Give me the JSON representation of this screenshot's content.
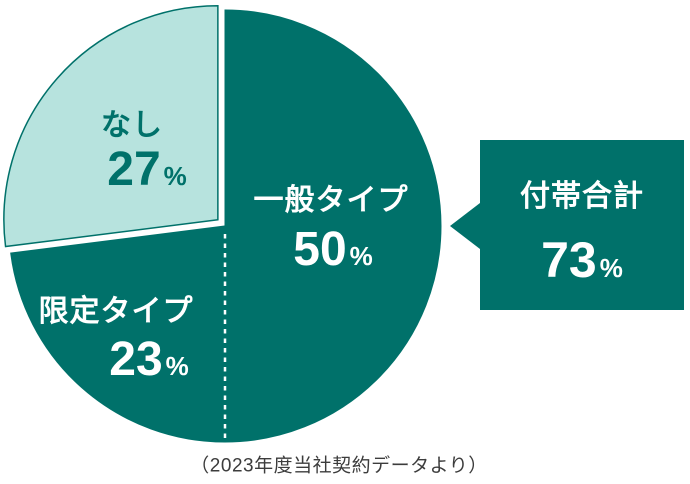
{
  "chart_data": {
    "type": "pie",
    "title": "",
    "start_angle_deg": 0,
    "direction": "clockwise",
    "slices": [
      {
        "label": "一般タイプ",
        "value": 50,
        "color": "#00716A",
        "label_color": "#FFFFFF",
        "exploded": false
      },
      {
        "label": "限定タイプ",
        "value": 23,
        "color": "#00716A",
        "label_color": "#FFFFFF",
        "exploded": false
      },
      {
        "label": "なし",
        "value": 27,
        "color": "#B7E3DE",
        "label_color": "#00716A",
        "exploded": true,
        "outline_color": "#00716A"
      }
    ],
    "divider": {
      "after_slice_index": 0,
      "style": "white-dotted",
      "meaning": "splits grouped slices"
    },
    "callout": {
      "label": "付帯合計",
      "value": 73,
      "box_color": "#00716A",
      "text_color": "#FFFFFF",
      "points_to": "pie"
    },
    "source_note": "（2023年度当社契約データより）"
  },
  "percent_sign": "%",
  "colors": {
    "dark_teal": "#00716A",
    "light_mint": "#B7E3DE",
    "caption_text": "#3C3C3C",
    "background": "#FFFFFF"
  }
}
